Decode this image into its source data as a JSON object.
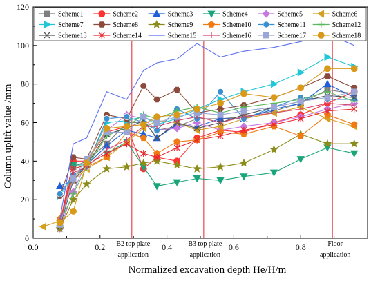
{
  "chart_data": {
    "type": "line",
    "xlabel": "Normalized excavation depth He/H/m",
    "ylabel": "Column uplift value /mm",
    "xlim": [
      0,
      1.0
    ],
    "ylim": [
      0,
      120
    ],
    "x_ticks": [
      "0.0",
      "0.2",
      "0.4",
      "0.6",
      "0.8"
    ],
    "x_tick_values": [
      0.0,
      0.2,
      0.4,
      0.6,
      0.8
    ],
    "y_ticks": [
      "0",
      "20",
      "40",
      "60",
      "80",
      "100",
      "120"
    ],
    "y_tick_values": [
      0,
      20,
      40,
      60,
      80,
      100,
      120
    ],
    "grid": false,
    "legend_position": "top",
    "annotations": [
      {
        "x": 0.295,
        "lines": [
          "B2 top plate",
          "application"
        ]
      },
      {
        "x": 0.51,
        "lines": [
          "B3 top plate",
          "application"
        ]
      },
      {
        "x": 0.895,
        "lines": [
          "Floor",
          "application"
        ]
      }
    ],
    "series": [
      {
        "name": "Scheme1",
        "color": "#7f7f7f",
        "marker": "square",
        "x": [
          0.08,
          0.12,
          0.16,
          0.22,
          0.28,
          0.33,
          0.37,
          0.43,
          0.49,
          0.56,
          0.63,
          0.72,
          0.8,
          0.88,
          0.96
        ],
        "y": [
          7,
          37,
          40,
          49,
          60,
          60,
          56,
          58,
          62,
          62,
          63,
          66,
          70,
          77,
          75
        ]
      },
      {
        "name": "Scheme2",
        "color": "#ff3333",
        "marker": "circle",
        "x": [
          0.08,
          0.12,
          0.16,
          0.22,
          0.28,
          0.33,
          0.37,
          0.43,
          0.49,
          0.56,
          0.63,
          0.72,
          0.8,
          0.88,
          0.96
        ],
        "y": [
          8,
          40,
          40,
          55,
          58,
          36,
          42,
          40,
          52,
          56,
          55,
          60,
          64,
          70,
          76
        ]
      },
      {
        "name": "Scheme3",
        "color": "#1f5fd9",
        "marker": "triangle-up",
        "x": [
          0.08,
          0.12,
          0.16,
          0.22,
          0.28,
          0.33,
          0.37,
          0.43,
          0.49,
          0.56,
          0.63,
          0.72,
          0.8,
          0.88,
          0.96
        ],
        "y": [
          27,
          30,
          38,
          48,
          56,
          54,
          52,
          59,
          58,
          62,
          62,
          67,
          70,
          80,
          73
        ]
      },
      {
        "name": "Scheme4",
        "color": "#1aa57a",
        "marker": "triangle-down",
        "x": [
          0.08,
          0.12,
          0.16,
          0.22,
          0.28,
          0.33,
          0.37,
          0.43,
          0.49,
          0.56,
          0.63,
          0.72,
          0.8,
          0.88,
          0.96
        ],
        "y": [
          5,
          38,
          38,
          44,
          50,
          37,
          27,
          29,
          31,
          30,
          32,
          34,
          41,
          47,
          44
        ]
      },
      {
        "name": "Scheme5",
        "color": "#c678e0",
        "marker": "diamond",
        "x": [
          0.08,
          0.12,
          0.16,
          0.22,
          0.28,
          0.33,
          0.37,
          0.43,
          0.49,
          0.56,
          0.63,
          0.72,
          0.8,
          0.88,
          0.96
        ],
        "y": [
          5,
          24,
          40,
          56,
          64,
          62,
          56,
          57,
          60,
          56,
          58,
          60,
          63,
          67,
          70
        ]
      },
      {
        "name": "Scheme6",
        "color": "#d4a020",
        "marker": "triangle-left",
        "x": [
          0.03,
          0.08,
          0.12,
          0.16,
          0.22,
          0.28,
          0.33,
          0.37,
          0.43,
          0.49,
          0.56,
          0.63,
          0.72,
          0.8,
          0.88,
          0.96
        ],
        "y": [
          6,
          9,
          30,
          36,
          42,
          50,
          57,
          61,
          60,
          56,
          58,
          62,
          65,
          68,
          62,
          58
        ]
      },
      {
        "name": "Scheme7",
        "color": "#22c6d6",
        "marker": "triangle-right",
        "x": [
          0.08,
          0.12,
          0.16,
          0.22,
          0.28,
          0.33,
          0.37,
          0.43,
          0.49,
          0.56,
          0.63,
          0.72,
          0.8,
          0.88,
          0.96
        ],
        "y": [
          22,
          32,
          38,
          60,
          61,
          63,
          59,
          62,
          67,
          72,
          76,
          80,
          86,
          94,
          89
        ]
      },
      {
        "name": "Scheme8",
        "color": "#8b4a3c",
        "marker": "hexagon",
        "x": [
          0.08,
          0.12,
          0.16,
          0.22,
          0.28,
          0.33,
          0.37,
          0.43,
          0.49,
          0.56,
          0.63,
          0.72,
          0.8,
          0.88,
          0.96
        ],
        "y": [
          22,
          42,
          41,
          64,
          62,
          79,
          72,
          77,
          65,
          67,
          69,
          73,
          78,
          84,
          78
        ]
      },
      {
        "name": "Scheme9",
        "color": "#8c8c1a",
        "marker": "star",
        "x": [
          0.08,
          0.12,
          0.16,
          0.22,
          0.28,
          0.33,
          0.37,
          0.43,
          0.49,
          0.56,
          0.63,
          0.72,
          0.8,
          0.88,
          0.96
        ],
        "y": [
          5,
          20,
          28,
          36,
          37,
          39,
          40,
          38,
          36,
          37,
          39,
          46,
          54,
          49,
          49
        ]
      },
      {
        "name": "Scheme10",
        "color": "#f07b12",
        "marker": "pentagon",
        "x": [
          0.08,
          0.12,
          0.16,
          0.22,
          0.28,
          0.33,
          0.37,
          0.43,
          0.49,
          0.56,
          0.63,
          0.72,
          0.8,
          0.88,
          0.96
        ],
        "y": [
          10,
          32,
          37,
          42,
          55,
          52,
          44,
          50,
          51,
          55,
          54,
          58,
          53,
          64,
          59
        ]
      },
      {
        "name": "Scheme11",
        "color": "#3a8fd1",
        "marker": "ring",
        "x": [
          0.08,
          0.12,
          0.16,
          0.22,
          0.28,
          0.33,
          0.37,
          0.43,
          0.49,
          0.56,
          0.63,
          0.72,
          0.8,
          0.88,
          0.96
        ],
        "y": [
          23,
          33,
          37,
          62,
          63,
          60,
          56,
          67,
          62,
          76,
          62,
          68,
          73,
          72,
          72
        ]
      },
      {
        "name": "Scheme12",
        "color": "#5cb85c",
        "marker": "plus",
        "x": [
          0.08,
          0.12,
          0.16,
          0.22,
          0.28,
          0.33,
          0.37,
          0.43,
          0.49,
          0.56,
          0.63,
          0.72,
          0.8,
          0.88,
          0.96
        ],
        "y": [
          8,
          23,
          37,
          53,
          58,
          64,
          62,
          66,
          68,
          65,
          68,
          70,
          72,
          76,
          71
        ]
      },
      {
        "name": "Scheme13",
        "color": "#555555",
        "marker": "cross",
        "x": [
          0.08,
          0.12,
          0.16,
          0.22,
          0.28,
          0.33,
          0.37,
          0.43,
          0.49,
          0.56,
          0.63,
          0.72,
          0.8,
          0.88,
          0.96
        ],
        "y": [
          6,
          30,
          38,
          54,
          57,
          61,
          52,
          60,
          57,
          60,
          64,
          68,
          71,
          74,
          73
        ]
      },
      {
        "name": "Scheme14",
        "color": "#e8282f",
        "marker": "asterisk",
        "x": [
          0.08,
          0.12,
          0.16,
          0.22,
          0.28,
          0.33,
          0.37,
          0.43,
          0.49,
          0.56,
          0.63,
          0.72,
          0.8,
          0.88,
          0.96
        ],
        "y": [
          8,
          36,
          38,
          44,
          49,
          44,
          42,
          47,
          51,
          53,
          56,
          59,
          62,
          66,
          67
        ]
      },
      {
        "name": "Scheme15",
        "color": "#5b6ff0",
        "marker": "none",
        "x": [
          0.08,
          0.12,
          0.16,
          0.22,
          0.28,
          0.33,
          0.37,
          0.43,
          0.49,
          0.56,
          0.63,
          0.72,
          0.8,
          0.88,
          0.96
        ],
        "y": [
          10,
          49,
          52,
          76,
          72,
          87,
          91,
          93,
          101,
          94,
          97,
          99,
          102,
          106,
          100
        ]
      },
      {
        "name": "Scheme16",
        "color": "#d3466e",
        "marker": "tick",
        "x": [
          0.08,
          0.12,
          0.16,
          0.22,
          0.28,
          0.33,
          0.37,
          0.43,
          0.49,
          0.56,
          0.63,
          0.72,
          0.8,
          0.88,
          0.96
        ],
        "y": [
          8,
          34,
          37,
          46,
          51,
          58,
          58,
          61,
          63,
          60,
          63,
          65,
          67,
          70,
          69
        ]
      },
      {
        "name": "Scheme17",
        "color": "#9aa6d6",
        "marker": "square-light",
        "x": [
          0.08,
          0.12,
          0.16,
          0.22,
          0.28,
          0.33,
          0.37,
          0.43,
          0.49,
          0.56,
          0.63,
          0.72,
          0.8,
          0.88,
          0.96
        ],
        "y": [
          7,
          31,
          41,
          55,
          55,
          63,
          60,
          63,
          65,
          64,
          66,
          68,
          71,
          73,
          76
        ]
      },
      {
        "name": "Scheme18",
        "color": "#d99a1a",
        "marker": "circle-gold",
        "x": [
          0.08,
          0.12,
          0.16,
          0.22,
          0.28,
          0.33,
          0.37,
          0.43,
          0.49,
          0.56,
          0.63,
          0.72,
          0.8,
          0.88,
          0.96
        ],
        "y": [
          8,
          14,
          39,
          57,
          58,
          59,
          63,
          64,
          67,
          70,
          75,
          73,
          78,
          88,
          88
        ]
      }
    ]
  }
}
